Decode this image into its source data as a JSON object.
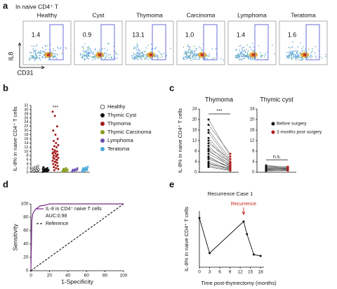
{
  "chart_data": [
    {
      "type": "flow",
      "label": "a",
      "title": "In naive CD4⁺ T",
      "xlabel": "CD31",
      "ylabel": "IL8",
      "categories": [
        "Healthy",
        "Cyst",
        "Thymoma",
        "Carcinoma",
        "Lymphoma",
        "Teratoma"
      ],
      "values": [
        1.4,
        0.9,
        13.1,
        1.0,
        1.4,
        1.6
      ],
      "value_labels": [
        "1.4",
        "0.9",
        "13.1",
        "1.0",
        "1.4",
        "1.6"
      ],
      "color": "#4a4ad0"
    },
    {
      "type": "strip",
      "label": "b",
      "ylabel": "IL-8% in naive CD4⁺ T cells",
      "significance": "***",
      "ylim": [
        0,
        32
      ],
      "yticks": [
        0,
        2,
        4,
        6,
        8,
        10,
        12,
        14,
        16,
        18,
        20,
        22,
        24,
        26,
        28,
        30,
        32
      ],
      "series": [
        {
          "name": "Healthy",
          "color": "#ffffff",
          "marker": "open",
          "values": [
            0.3,
            0.5,
            0.6,
            0.8,
            0.9,
            1.0,
            1.1,
            1.2,
            1.3,
            1.4,
            1.5,
            1.6,
            1.8,
            2.0,
            2.2,
            2.5,
            3.0,
            0.7,
            1.0,
            1.3
          ]
        },
        {
          "name": "Thymic Cyst",
          "color": "#111111",
          "values": [
            0.2,
            0.4,
            0.5,
            0.6,
            0.7,
            0.8,
            0.9,
            1.0,
            1.1,
            1.2,
            1.3,
            1.5,
            1.7,
            2.0,
            2.4,
            0.6,
            0.9,
            1.1
          ]
        },
        {
          "name": "Thymoma",
          "color": "#a31a1a",
          "values": [
            29,
            27,
            22,
            20,
            18,
            16,
            15,
            14,
            13,
            12.5,
            12,
            11,
            10.5,
            10,
            9.5,
            9,
            8.5,
            8,
            7.5,
            7,
            6.5,
            6,
            5.5,
            5,
            4.5,
            4,
            3.5,
            3,
            2.5,
            2,
            1.5,
            1,
            8,
            9,
            10,
            6,
            7,
            5
          ]
        },
        {
          "name": "Thymic Carcinoma",
          "color": "#8a9a1a",
          "values": [
            0.3,
            0.5,
            0.7,
            0.9,
            1.1,
            1.3,
            1.6,
            2.0
          ]
        },
        {
          "name": "Lymphoma",
          "color": "#6a4fb0",
          "values": [
            0.5,
            0.8,
            1.0,
            1.2,
            1.4,
            1.9
          ]
        },
        {
          "name": "Teratoma",
          "color": "#4aa8d8",
          "values": [
            0.4,
            0.7,
            1.0,
            1.2,
            1.4,
            1.6,
            1.9,
            2.2,
            2.6
          ]
        }
      ]
    },
    {
      "type": "paired",
      "label": "c",
      "ylabel": "IL-8% in naive CD4⁺ T cells",
      "ylim": [
        0,
        24
      ],
      "yticks": [
        0,
        4,
        8,
        12,
        16,
        20,
        24
      ],
      "series": [
        {
          "name": "Before surgery",
          "color": "#111111"
        },
        {
          "name": "3 months post surgery",
          "color": "#b01c1c"
        }
      ],
      "panels": [
        {
          "title": "Thymoma",
          "significance": "***",
          "before": [
            20,
            18,
            16,
            15,
            13,
            12,
            11,
            10,
            9,
            8.5,
            8,
            7,
            6,
            5.5,
            5,
            4,
            3.5,
            3,
            2.5,
            2
          ],
          "after": [
            6,
            7,
            5,
            4,
            3.5,
            3,
            5,
            2.5,
            4,
            2,
            3,
            2.5,
            1.5,
            2,
            1.8,
            1.2,
            1,
            1.5,
            0.8,
            0.6
          ]
        },
        {
          "title": "Thymic cyst",
          "significance": "n.s.",
          "before": [
            2.6,
            2.2,
            2.0,
            1.8,
            1.5,
            1.3,
            1.1,
            0.9,
            0.7,
            0.5
          ],
          "after": [
            1.9,
            2.1,
            1.6,
            1.5,
            1.4,
            1.0,
            1.2,
            0.8,
            0.9,
            0.6
          ]
        }
      ]
    },
    {
      "type": "roc",
      "label": "d",
      "xlabel": "1-Specificity",
      "ylabel": "Sensitivity",
      "annotation": "AUC:0.98",
      "xlim": [
        0,
        100
      ],
      "ylim": [
        0,
        100
      ],
      "xticks": [
        0,
        20,
        40,
        60,
        80,
        100
      ],
      "yticks": [
        0,
        20,
        40,
        60,
        80,
        100
      ],
      "series": [
        {
          "name": "IL-8 in CD4⁺ naive T cells",
          "color": "#7a2a8a",
          "linestyle": "solid",
          "x": [
            0,
            1,
            2,
            3,
            5,
            8,
            10,
            15,
            20,
            100
          ],
          "values": [
            0,
            75,
            85,
            88,
            92,
            95,
            97,
            98,
            100,
            100
          ]
        },
        {
          "name": "Reference",
          "color": "#222222",
          "linestyle": "dashed",
          "x": [
            0,
            100
          ],
          "values": [
            0,
            100
          ]
        }
      ]
    },
    {
      "type": "line",
      "label": "e",
      "title": "Recurrence Case 1",
      "xlabel": "Time post-thymectomy (months)",
      "ylabel": "IL-8% in naive CD4⁺ T cells",
      "annotation": {
        "text": "Recurrence",
        "x": 13,
        "color": "#c0281c"
      },
      "xlim": [
        0,
        19
      ],
      "ylim": [
        0,
        8
      ],
      "xticks": [
        0,
        3,
        6,
        9,
        12,
        15,
        18
      ],
      "color": "#111111",
      "x": [
        0,
        3,
        13,
        14,
        16,
        18
      ],
      "values": [
        7,
        2,
        6.5,
        4.7,
        1.8,
        1.6
      ]
    }
  ]
}
